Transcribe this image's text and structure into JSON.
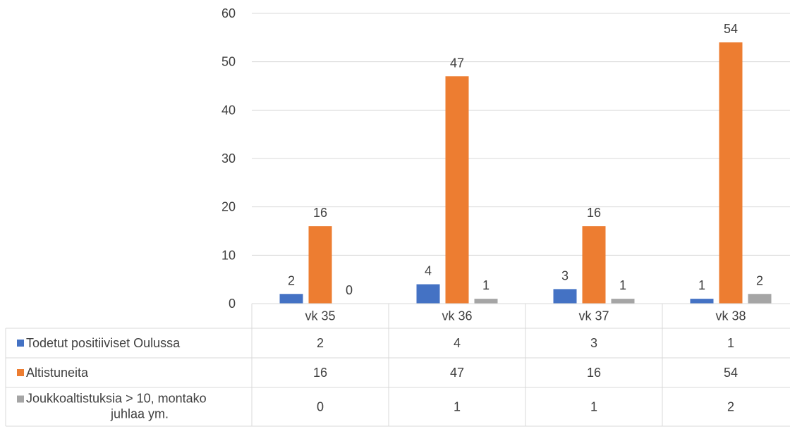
{
  "chart_data": {
    "type": "bar",
    "categories": [
      "vk 35",
      "vk 36",
      "vk 37",
      "vk 38"
    ],
    "series": [
      {
        "name": "Todetut positiiviset Oulussa",
        "values": [
          2,
          4,
          3,
          1
        ],
        "color": "#4472C4"
      },
      {
        "name": "Altistuneita",
        "values": [
          16,
          47,
          16,
          54
        ],
        "color": "#ED7D31"
      },
      {
        "name": "Joukkoaltistuksia > 10,  montako juhlaa ym.",
        "values": [
          0,
          1,
          1,
          2
        ],
        "color": "#A5A5A5"
      }
    ],
    "ylim": [
      0,
      60
    ],
    "yticks": [
      0,
      10,
      20,
      30,
      40,
      50,
      60
    ],
    "grid": true,
    "data_labels": true,
    "legend": "data-table"
  },
  "colors": {
    "gridline": "#D9D9D9",
    "text": "#404040"
  }
}
